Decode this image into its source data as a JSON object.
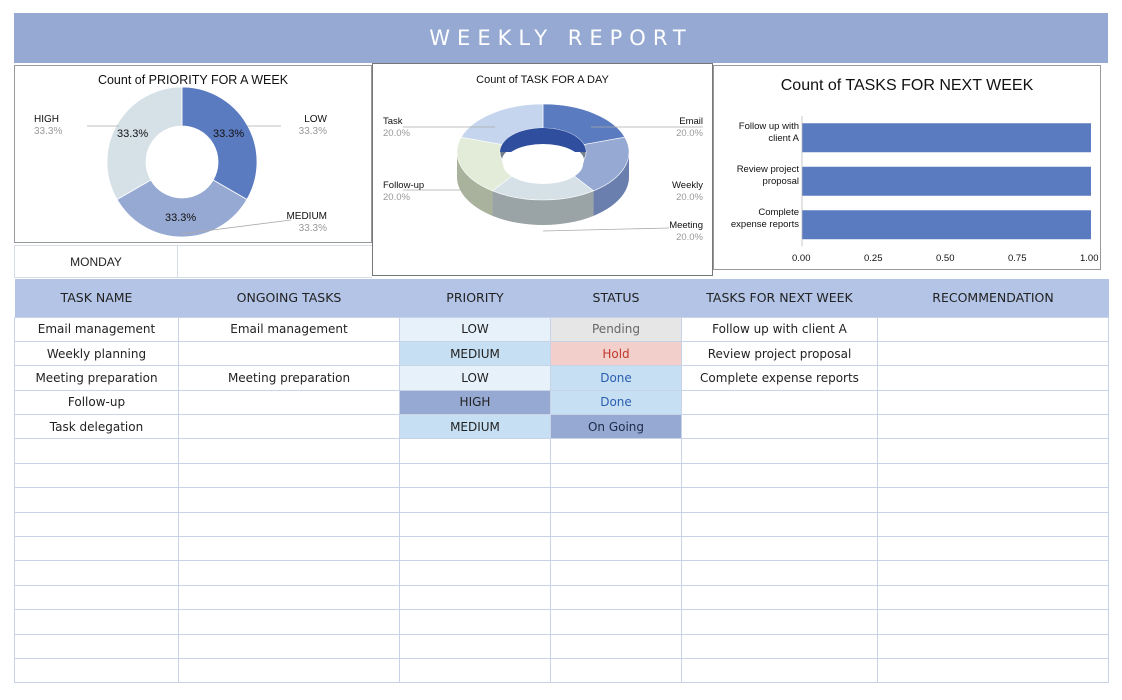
{
  "header": {
    "title": "WEEKLY REPORT"
  },
  "chart1": {
    "title": "Count of PRIORITY FOR A WEEK",
    "labels": [
      {
        "name": "HIGH",
        "pct": "33.3%"
      },
      {
        "name": "LOW",
        "pct": "33.3%"
      },
      {
        "name": "MEDIUM",
        "pct": "33.3%"
      }
    ],
    "slice_labels": [
      "33.3%",
      "33.3%",
      "33.3%"
    ]
  },
  "chart2": {
    "title": "Count of TASK FOR A DAY",
    "labels": [
      {
        "name": "Task",
        "pct": "20.0%"
      },
      {
        "name": "Email",
        "pct": "20.0%"
      },
      {
        "name": "Follow-up",
        "pct": "20.0%"
      },
      {
        "name": "Weekly",
        "pct": "20.0%"
      },
      {
        "name": "Meeting",
        "pct": "20.0%"
      }
    ]
  },
  "chart3": {
    "title": "Count of TASKS FOR NEXT WEEK",
    "categories": [
      [
        "Follow up with",
        "client A"
      ],
      [
        "Review project",
        "proposal"
      ],
      [
        "Complete",
        "expense reports"
      ]
    ],
    "ticks": [
      "0.00",
      "0.25",
      "0.50",
      "0.75",
      "1.00"
    ]
  },
  "chart_data": [
    {
      "type": "pie",
      "title": "Count of PRIORITY FOR A WEEK",
      "categories": [
        "HIGH",
        "LOW",
        "MEDIUM"
      ],
      "values": [
        33.3,
        33.3,
        33.3
      ],
      "colors": [
        "#d5e1e7",
        "#5b7bc0",
        "#96a9d3"
      ]
    },
    {
      "type": "pie",
      "title": "Count of TASK FOR A DAY",
      "categories": [
        "Email",
        "Weekly",
        "Meeting",
        "Follow-up",
        "Task"
      ],
      "values": [
        20.0,
        20.0,
        20.0,
        20.0,
        20.0
      ],
      "colors": [
        "#5b7bc0",
        "#96a9d3",
        "#d5e1e7",
        "#e2ecd8",
        "#c6d5ee"
      ]
    },
    {
      "type": "bar",
      "title": "Count of TASKS FOR NEXT WEEK",
      "categories": [
        "Follow up with client A",
        "Review project proposal",
        "Complete expense reports"
      ],
      "values": [
        1,
        1,
        1
      ],
      "xlim": [
        0,
        1
      ],
      "color": "#5b7bc0"
    }
  ],
  "day_label": "MONDAY",
  "table": {
    "headers": [
      "TASK NAME",
      "ONGOING TASKS",
      "PRIORITY",
      "STATUS",
      "TASKS FOR NEXT WEEK",
      "RECOMMENDATION"
    ],
    "rows": [
      [
        "Email management",
        "Email management",
        "LOW",
        "Pending",
        "Follow up with client A",
        ""
      ],
      [
        "Weekly planning",
        "",
        "MEDIUM",
        "Hold",
        "Review project proposal",
        ""
      ],
      [
        "Meeting preparation",
        "Meeting preparation",
        "LOW",
        "Done",
        "Complete expense reports",
        ""
      ],
      [
        "Follow-up",
        "",
        "HIGH",
        "Done",
        "",
        ""
      ],
      [
        "Task delegation",
        "",
        "MEDIUM",
        "On Going",
        "",
        ""
      ],
      [
        "",
        "",
        "",
        "",
        "",
        ""
      ],
      [
        "",
        "",
        "",
        "",
        "",
        ""
      ],
      [
        "",
        "",
        "",
        "",
        "",
        ""
      ],
      [
        "",
        "",
        "",
        "",
        "",
        ""
      ],
      [
        "",
        "",
        "",
        "",
        "",
        ""
      ],
      [
        "",
        "",
        "",
        "",
        "",
        ""
      ],
      [
        "",
        "",
        "",
        "",
        "",
        ""
      ],
      [
        "",
        "",
        "",
        "",
        "",
        ""
      ],
      [
        "",
        "",
        "",
        "",
        "",
        ""
      ],
      [
        "",
        "",
        "",
        "",
        "",
        ""
      ]
    ]
  }
}
